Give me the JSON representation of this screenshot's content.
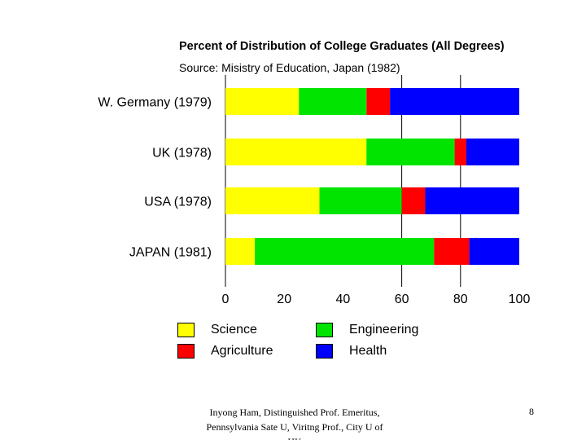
{
  "chart_data": {
    "type": "bar",
    "orientation": "horizontal",
    "stacked": true,
    "title": "Percent of Distribution of College Graduates (All Degrees)",
    "subtitle": "Source: Misistry of Education, Japan (1982)",
    "categories": [
      "W. Germany (1979)",
      "UK (1978)",
      "USA (1978)",
      "JAPAN (1981)"
    ],
    "series": [
      {
        "name": "Science",
        "color": "#ffff00",
        "values": [
          25,
          48,
          32,
          10
        ]
      },
      {
        "name": "Engineering",
        "color": "#00e400",
        "values": [
          23,
          30,
          28,
          61
        ]
      },
      {
        "name": "Agriculture",
        "color": "#ff0000",
        "values": [
          8,
          4,
          8,
          12
        ]
      },
      {
        "name": "Health",
        "color": "#0000ff",
        "values": [
          44,
          18,
          32,
          17
        ]
      }
    ],
    "xticks": [
      0,
      20,
      40,
      60,
      80,
      100
    ],
    "xlim": [
      0,
      100
    ],
    "gridlines": [
      60,
      80
    ],
    "xlabel": "",
    "ylabel": "",
    "legend": "bottom"
  },
  "footer": {
    "text": "Inyong Ham, Distinguished Prof. Emeritus, Pennsylvania Sate U, Viritng Prof., City U of HK",
    "page_number": "8"
  }
}
